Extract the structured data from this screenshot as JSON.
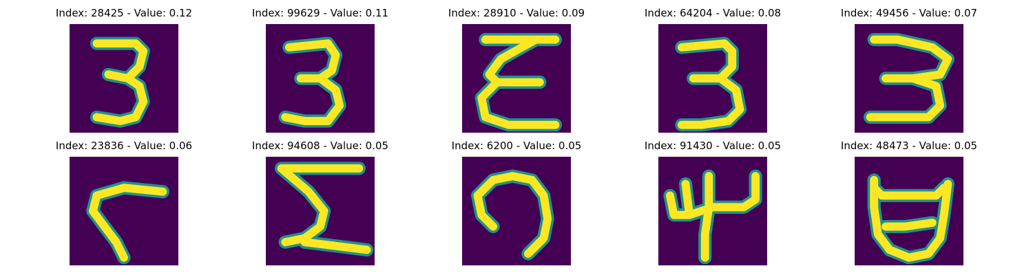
{
  "panels": [
    {
      "title": "Index: 28425 - Value: 0.12",
      "glyph": "three-a-icon"
    },
    {
      "title": "Index: 99629 - Value: 0.11",
      "glyph": "three-b-icon"
    },
    {
      "title": "Index: 28910 - Value: 0.09",
      "glyph": "three-c-icon"
    },
    {
      "title": "Index: 64204 - Value: 0.08",
      "glyph": "three-d-icon"
    },
    {
      "title": "Index: 49456 - Value: 0.07",
      "glyph": "three-e-icon"
    },
    {
      "title": "Index: 23836 - Value: 0.06",
      "glyph": "hook-icon"
    },
    {
      "title": "Index: 94608 - Value: 0.05",
      "glyph": "sigma-icon"
    },
    {
      "title": "Index: 6200 - Value: 0.05",
      "glyph": "arch-icon"
    },
    {
      "title": "Index: 91430 - Value: 0.05",
      "glyph": "four-icon"
    },
    {
      "title": "Index: 48473 - Value: 0.05",
      "glyph": "cup-icon"
    }
  ],
  "colors": {
    "background": "#440154",
    "edge": "#21918c",
    "stroke": "#fde725"
  }
}
